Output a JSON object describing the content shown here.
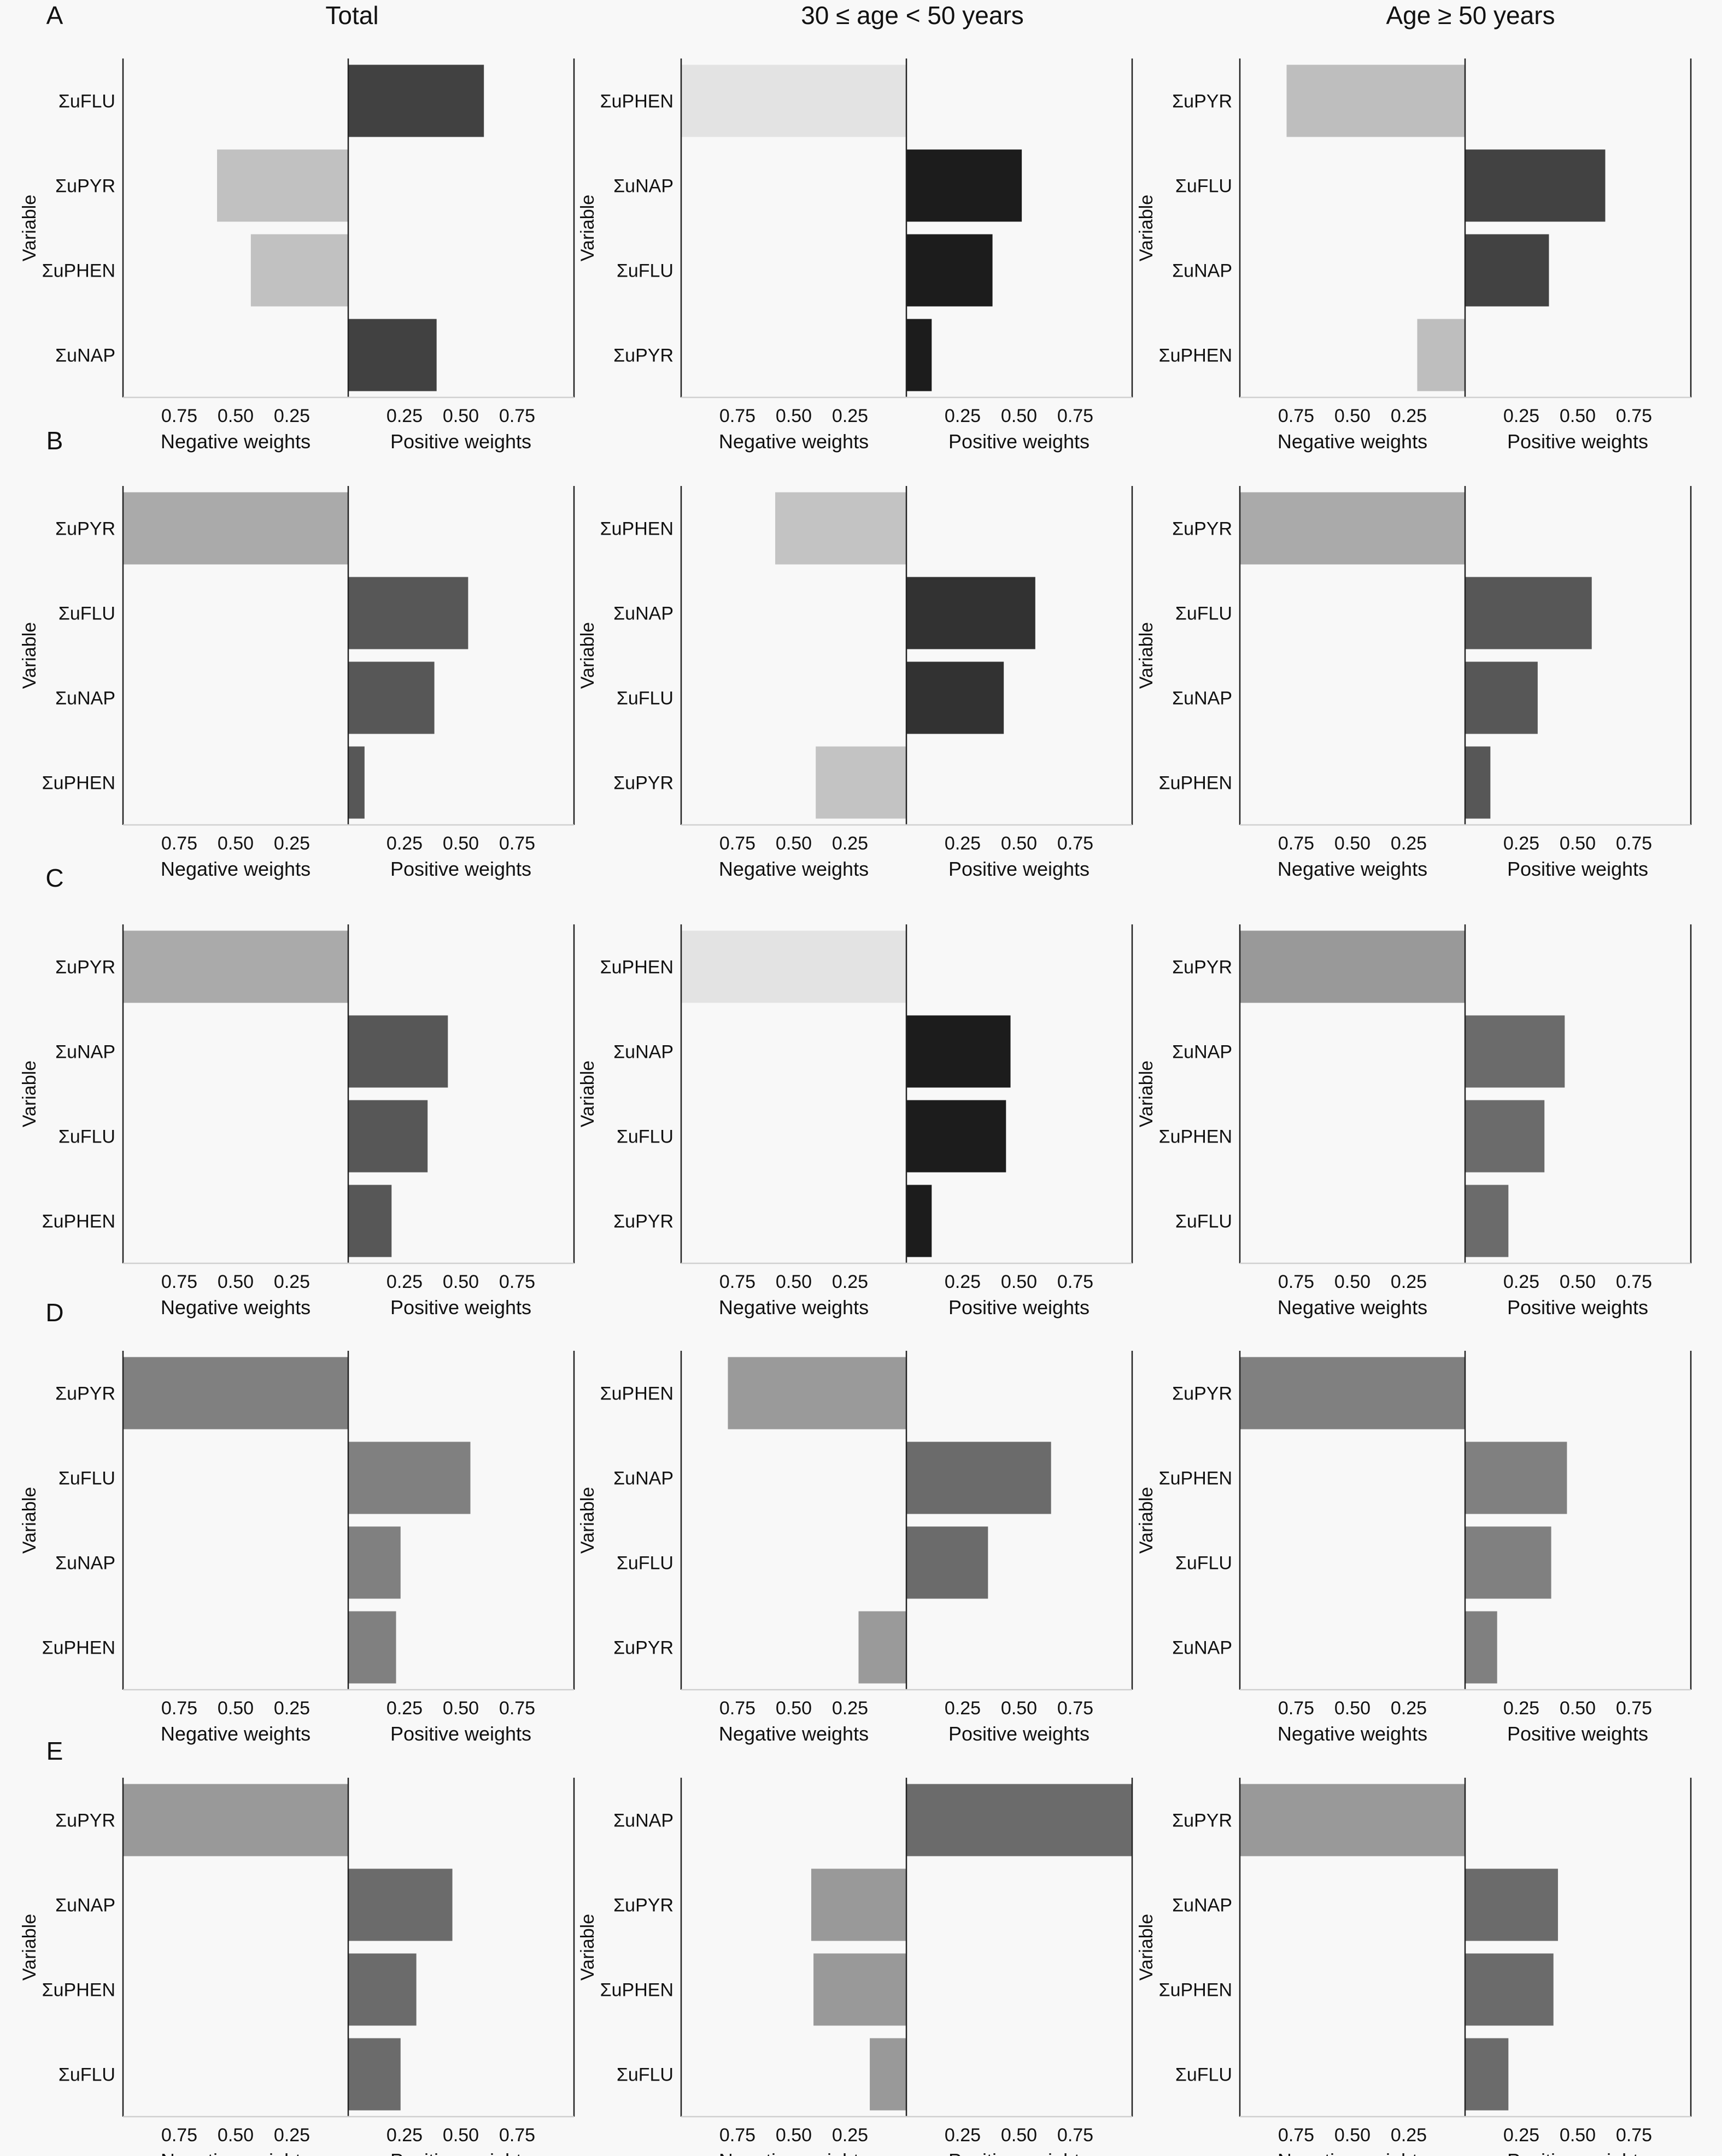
{
  "column_headers": [
    "Total",
    "30 ≤ age < 50 years",
    "Age ≥ 50 years"
  ],
  "chart_data": [
    {
      "type": "bar",
      "row": "A",
      "column": "Total",
      "ylabel": "Variable",
      "xlabel_left": "Negative weights",
      "xlabel_right": "Positive weights",
      "xlim_each_side": [
        0,
        1
      ],
      "x_ticks": [
        0.25,
        0.5,
        0.75
      ],
      "x_tick_labels": [
        "0.25",
        "0.50",
        "0.75"
      ],
      "categories": [
        "ΣuFLU",
        "ΣuPYR",
        "ΣuPHEN",
        "ΣuNAP"
      ],
      "values": [
        0.6,
        -0.58,
        -0.43,
        0.39
      ],
      "bar_colors": [
        "#414141",
        "#c1c1c1",
        "#c1c1c1",
        "#414141"
      ]
    },
    {
      "type": "bar",
      "row": "A",
      "column": "30 ≤ age < 50 years",
      "ylabel": "Variable",
      "xlabel_left": "Negative weights",
      "xlabel_right": "Positive weights",
      "xlim_each_side": [
        0,
        1
      ],
      "x_ticks": [
        0.25,
        0.5,
        0.75
      ],
      "x_tick_labels": [
        "0.25",
        "0.50",
        "0.75"
      ],
      "categories": [
        "ΣuPHEN",
        "ΣuNAP",
        "ΣuFLU",
        "ΣuPYR"
      ],
      "values": [
        -1.0,
        0.51,
        0.38,
        0.11
      ],
      "bar_colors": [
        "#e3e3e3",
        "#1c1c1c",
        "#1c1c1c",
        "#1c1c1c"
      ]
    },
    {
      "type": "bar",
      "row": "A",
      "column": "Age ≥ 50 years",
      "ylabel": "Variable",
      "xlabel_left": "Negative weights",
      "xlabel_right": "Positive weights",
      "xlim_each_side": [
        0,
        1
      ],
      "x_ticks": [
        0.25,
        0.5,
        0.75
      ],
      "x_tick_labels": [
        "0.25",
        "0.50",
        "0.75"
      ],
      "categories": [
        "ΣuPYR",
        "ΣuFLU",
        "ΣuNAP",
        "ΣuPHEN"
      ],
      "values": [
        -0.79,
        0.62,
        0.37,
        -0.21
      ],
      "bar_colors": [
        "#bebebe",
        "#424242",
        "#424242",
        "#bebebe"
      ]
    },
    {
      "type": "bar",
      "row": "B",
      "column": "Total",
      "ylabel": "Variable",
      "xlabel_left": "Negative weights",
      "xlabel_right": "Positive weights",
      "xlim_each_side": [
        0,
        1
      ],
      "x_ticks": [
        0.25,
        0.5,
        0.75
      ],
      "x_tick_labels": [
        "0.25",
        "0.50",
        "0.75"
      ],
      "categories": [
        "ΣuPYR",
        "ΣuFLU",
        "ΣuNAP",
        "ΣuPHEN"
      ],
      "values": [
        -1.0,
        0.53,
        0.38,
        0.07
      ],
      "bar_colors": [
        "#aaaaaa",
        "#575757",
        "#575757",
        "#575757"
      ]
    },
    {
      "type": "bar",
      "row": "B",
      "column": "30 ≤ age < 50 years",
      "ylabel": "Variable",
      "xlabel_left": "Negative weights",
      "xlabel_right": "Positive weights",
      "xlim_each_side": [
        0,
        1
      ],
      "x_ticks": [
        0.25,
        0.5,
        0.75
      ],
      "x_tick_labels": [
        "0.25",
        "0.50",
        "0.75"
      ],
      "categories": [
        "ΣuPHEN",
        "ΣuNAP",
        "ΣuFLU",
        "ΣuPYR"
      ],
      "values": [
        -0.58,
        0.57,
        0.43,
        -0.4
      ],
      "bar_colors": [
        "#c3c3c3",
        "#323232",
        "#323232",
        "#c3c3c3"
      ]
    },
    {
      "type": "bar",
      "row": "B",
      "column": "Age ≥ 50 years",
      "ylabel": "Variable",
      "xlabel_left": "Negative weights",
      "xlabel_right": "Positive weights",
      "xlim_each_side": [
        0,
        1
      ],
      "x_ticks": [
        0.25,
        0.5,
        0.75
      ],
      "x_tick_labels": [
        "0.25",
        "0.50",
        "0.75"
      ],
      "categories": [
        "ΣuPYR",
        "ΣuFLU",
        "ΣuNAP",
        "ΣuPHEN"
      ],
      "values": [
        -1.0,
        0.56,
        0.32,
        0.11
      ],
      "bar_colors": [
        "#aaaaaa",
        "#575757",
        "#575757",
        "#575757"
      ]
    },
    {
      "type": "bar",
      "row": "C",
      "column": "Total",
      "ylabel": "Variable",
      "xlabel_left": "Negative weights",
      "xlabel_right": "Positive weights",
      "xlim_each_side": [
        0,
        1
      ],
      "x_ticks": [
        0.25,
        0.5,
        0.75
      ],
      "x_tick_labels": [
        "0.25",
        "0.50",
        "0.75"
      ],
      "categories": [
        "ΣuPYR",
        "ΣuNAP",
        "ΣuFLU",
        "ΣuPHEN"
      ],
      "values": [
        -1.0,
        0.44,
        0.35,
        0.19
      ],
      "bar_colors": [
        "#aaaaaa",
        "#575757",
        "#575757",
        "#575757"
      ]
    },
    {
      "type": "bar",
      "row": "C",
      "column": "30 ≤ age < 50 years",
      "ylabel": "Variable",
      "xlabel_left": "Negative weights",
      "xlabel_right": "Positive weights",
      "xlim_each_side": [
        0,
        1
      ],
      "x_ticks": [
        0.25,
        0.5,
        0.75
      ],
      "x_tick_labels": [
        "0.25",
        "0.50",
        "0.75"
      ],
      "categories": [
        "ΣuPHEN",
        "ΣuNAP",
        "ΣuFLU",
        "ΣuPYR"
      ],
      "values": [
        -1.0,
        0.46,
        0.44,
        0.11
      ],
      "bar_colors": [
        "#e3e3e3",
        "#1c1c1c",
        "#1c1c1c",
        "#1c1c1c"
      ]
    },
    {
      "type": "bar",
      "row": "C",
      "column": "Age ≥ 50 years",
      "ylabel": "Variable",
      "xlabel_left": "Negative weights",
      "xlabel_right": "Positive weights",
      "xlim_each_side": [
        0,
        1
      ],
      "x_ticks": [
        0.25,
        0.5,
        0.75
      ],
      "x_tick_labels": [
        "0.25",
        "0.50",
        "0.75"
      ],
      "categories": [
        "ΣuPYR",
        "ΣuNAP",
        "ΣuPHEN",
        "ΣuFLU"
      ],
      "values": [
        -1.0,
        0.44,
        0.35,
        0.19
      ],
      "bar_colors": [
        "#999999",
        "#6b6b6b",
        "#6b6b6b",
        "#6b6b6b"
      ]
    },
    {
      "type": "bar",
      "row": "D",
      "column": "Total",
      "ylabel": "Variable",
      "xlabel_left": "Negative weights",
      "xlabel_right": "Positive weights",
      "xlim_each_side": [
        0,
        1
      ],
      "x_ticks": [
        0.25,
        0.5,
        0.75
      ],
      "x_tick_labels": [
        "0.25",
        "0.50",
        "0.75"
      ],
      "categories": [
        "ΣuPYR",
        "ΣuFLU",
        "ΣuNAP",
        "ΣuPHEN"
      ],
      "values": [
        -1.0,
        0.54,
        0.23,
        0.21
      ],
      "bar_colors": [
        "#808080",
        "#808080",
        "#808080",
        "#808080"
      ]
    },
    {
      "type": "bar",
      "row": "D",
      "column": "30 ≤ age < 50 years",
      "ylabel": "Variable",
      "xlabel_left": "Negative weights",
      "xlabel_right": "Positive weights",
      "xlim_each_side": [
        0,
        1
      ],
      "x_ticks": [
        0.25,
        0.5,
        0.75
      ],
      "x_tick_labels": [
        "0.25",
        "0.50",
        "0.75"
      ],
      "categories": [
        "ΣuPHEN",
        "ΣuNAP",
        "ΣuFLU",
        "ΣuPYR"
      ],
      "values": [
        -0.79,
        0.64,
        0.36,
        -0.21
      ],
      "bar_colors": [
        "#9a9a9a",
        "#6b6b6b",
        "#6b6b6b",
        "#9a9a9a"
      ]
    },
    {
      "type": "bar",
      "row": "D",
      "column": "Age ≥ 50 years",
      "ylabel": "Variable",
      "xlabel_left": "Negative weights",
      "xlabel_right": "Positive weights",
      "xlim_each_side": [
        0,
        1
      ],
      "x_ticks": [
        0.25,
        0.5,
        0.75
      ],
      "x_tick_labels": [
        "0.25",
        "0.50",
        "0.75"
      ],
      "categories": [
        "ΣuPYR",
        "ΣuPHEN",
        "ΣuFLU",
        "ΣuNAP"
      ],
      "values": [
        -1.0,
        0.45,
        0.38,
        0.14
      ],
      "bar_colors": [
        "#808080",
        "#808080",
        "#808080",
        "#808080"
      ]
    },
    {
      "type": "bar",
      "row": "E",
      "column": "Total",
      "ylabel": "Variable",
      "xlabel_left": "Negative weights",
      "xlabel_right": "Positive weights",
      "xlim_each_side": [
        0,
        1
      ],
      "x_ticks": [
        0.25,
        0.5,
        0.75
      ],
      "x_tick_labels": [
        "0.25",
        "0.50",
        "0.75"
      ],
      "categories": [
        "ΣuPYR",
        "ΣuNAP",
        "ΣuPHEN",
        "ΣuFLU"
      ],
      "values": [
        -1.0,
        0.46,
        0.3,
        0.23
      ],
      "bar_colors": [
        "#999999",
        "#6b6b6b",
        "#6b6b6b",
        "#6b6b6b"
      ]
    },
    {
      "type": "bar",
      "row": "E",
      "column": "30 ≤ age < 50 years",
      "ylabel": "Variable",
      "xlabel_left": "Negative weights",
      "xlabel_right": "Positive weights",
      "xlim_each_side": [
        0,
        1
      ],
      "x_ticks": [
        0.25,
        0.5,
        0.75
      ],
      "x_tick_labels": [
        "0.25",
        "0.50",
        "0.75"
      ],
      "categories": [
        "ΣuNAP",
        "ΣuPYR",
        "ΣuPHEN",
        "ΣuFLU"
      ],
      "values": [
        1.0,
        -0.42,
        -0.41,
        -0.16
      ],
      "bar_colors": [
        "#6b6b6b",
        "#999999",
        "#999999",
        "#999999"
      ]
    },
    {
      "type": "bar",
      "row": "E",
      "column": "Age ≥ 50 years",
      "ylabel": "Variable",
      "xlabel_left": "Negative weights",
      "xlabel_right": "Positive weights",
      "xlim_each_side": [
        0,
        1
      ],
      "x_ticks": [
        0.25,
        0.5,
        0.75
      ],
      "x_tick_labels": [
        "0.25",
        "0.50",
        "0.75"
      ],
      "categories": [
        "ΣuPYR",
        "ΣuNAP",
        "ΣuPHEN",
        "ΣuFLU"
      ],
      "values": [
        -1.0,
        0.41,
        0.39,
        0.19
      ],
      "bar_colors": [
        "#999999",
        "#6b6b6b",
        "#6b6b6b",
        "#6b6b6b"
      ]
    }
  ]
}
